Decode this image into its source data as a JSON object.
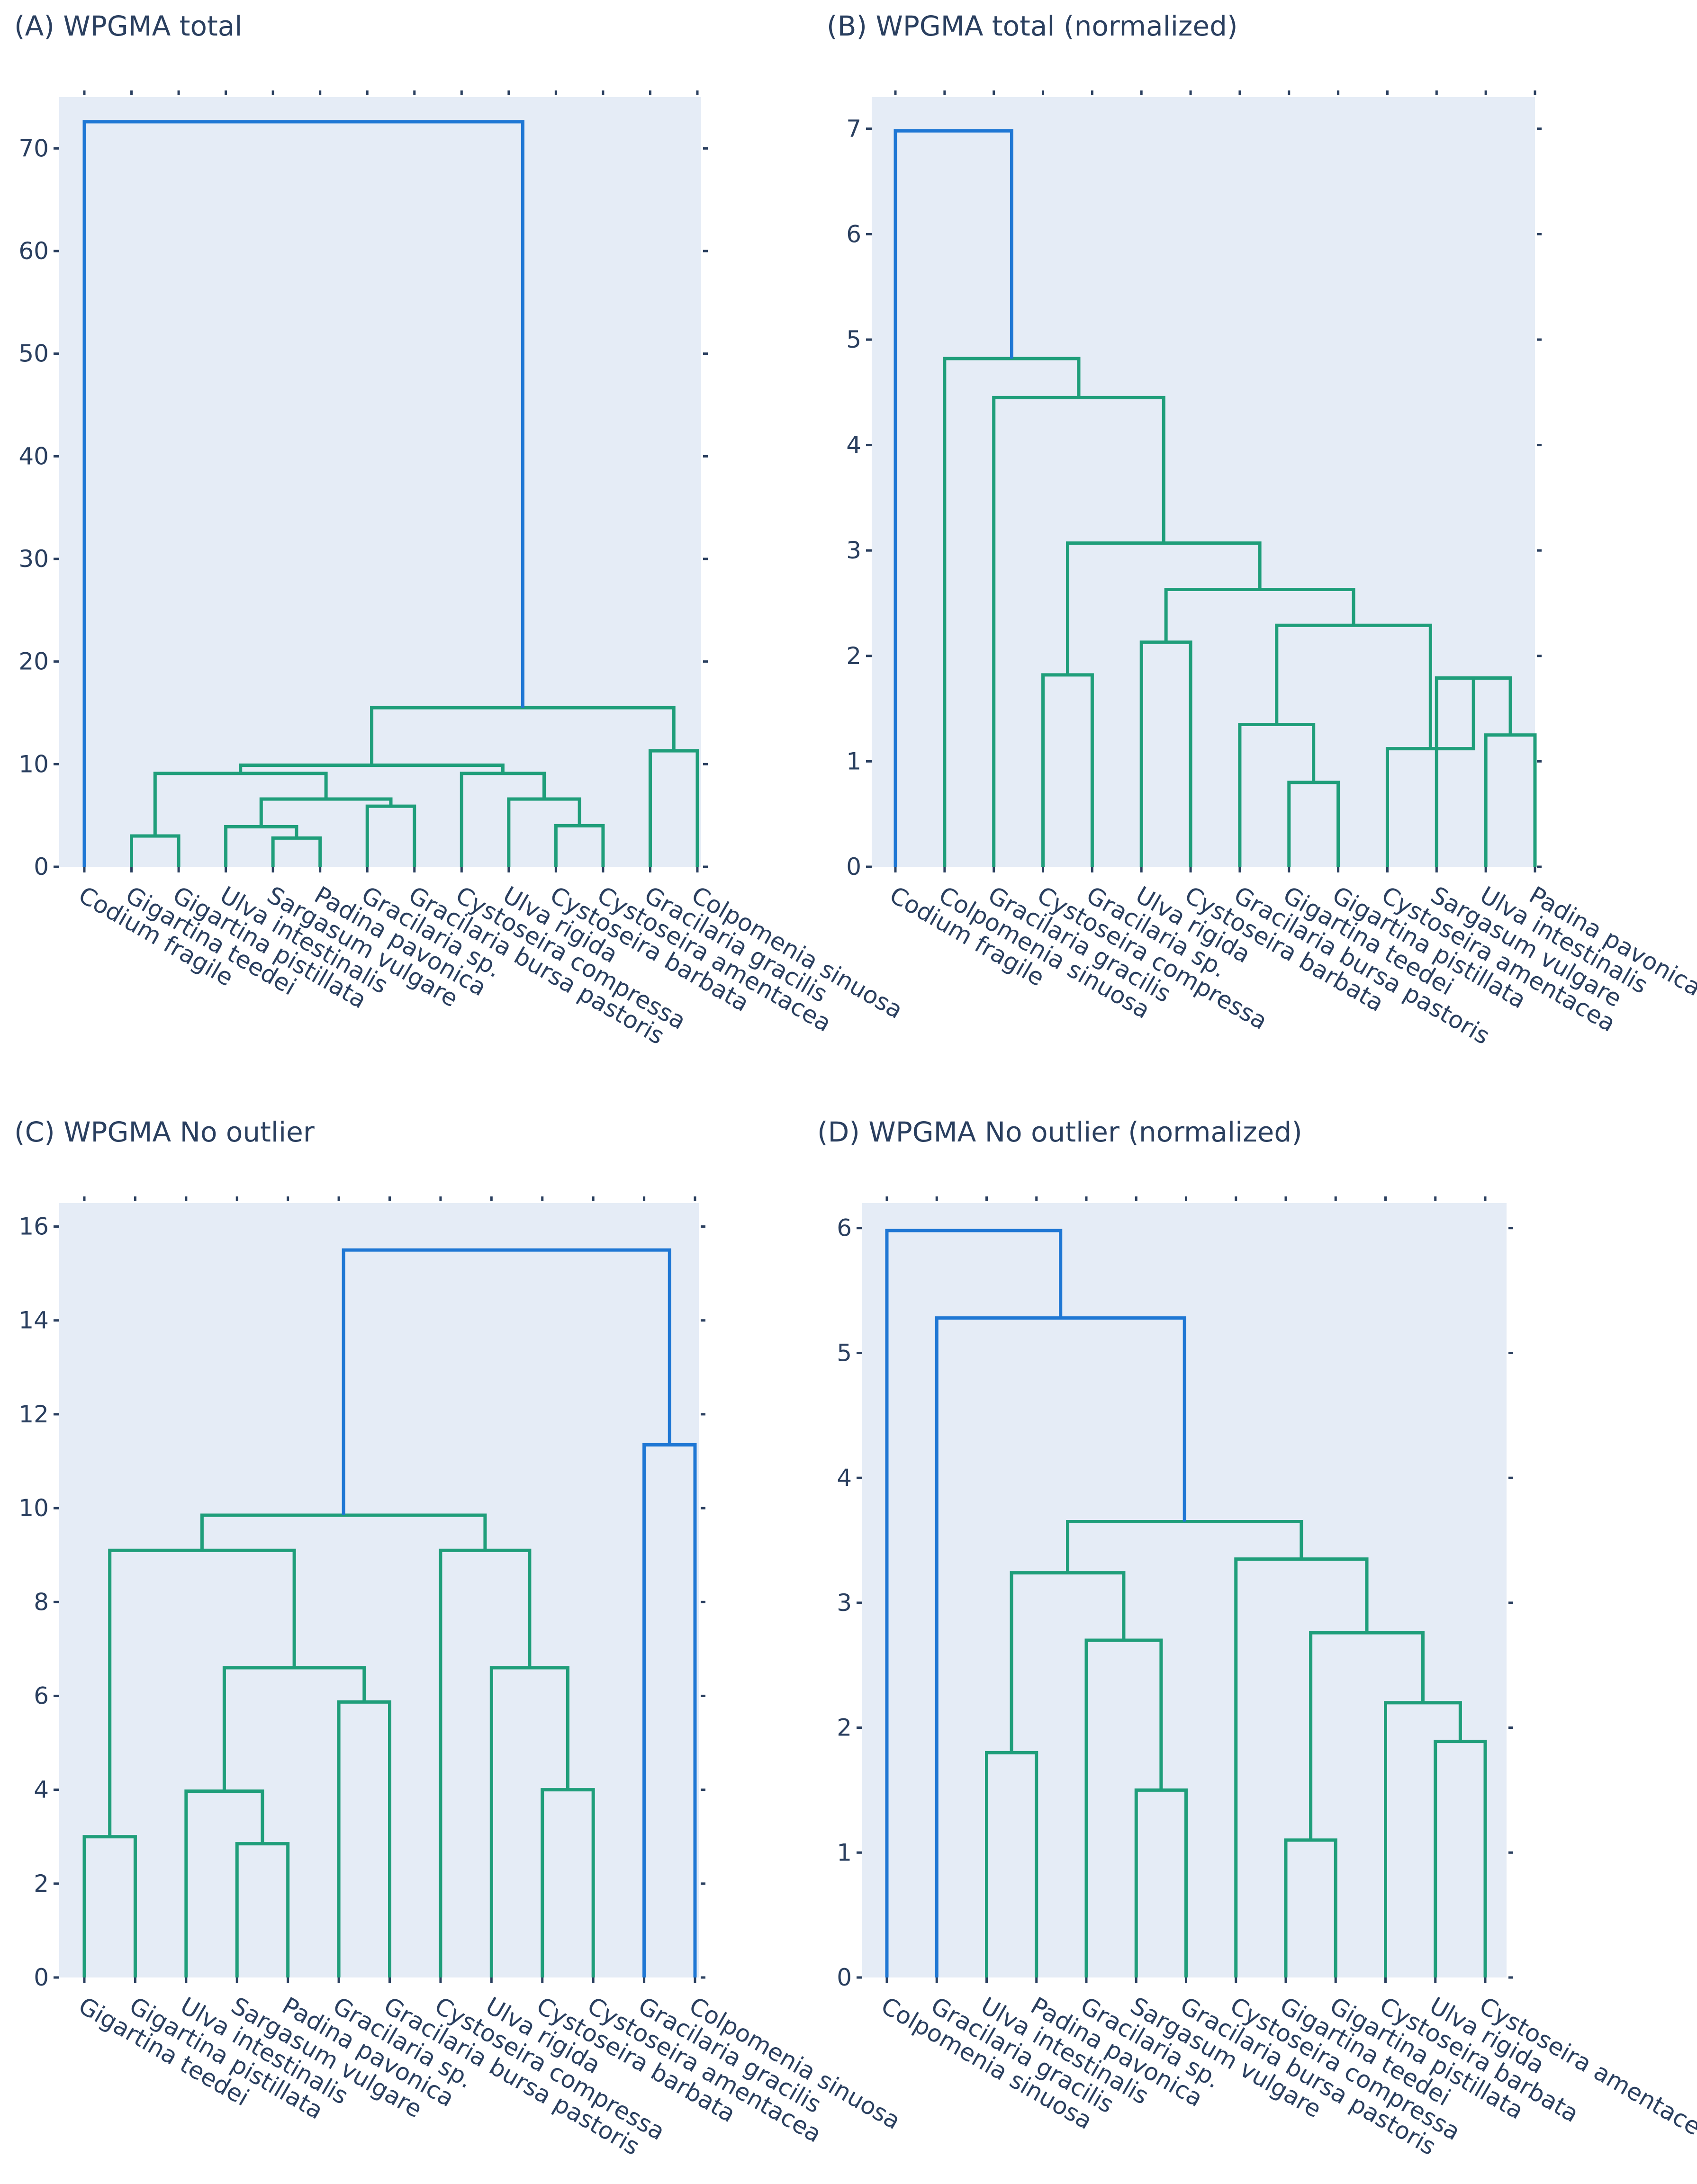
{
  "colors": {
    "background": "#e5ecf6",
    "above_threshold": "#1f77d4",
    "cluster": "#1f9e7a",
    "text": "#2a3f5f"
  },
  "chart_data": [
    {
      "type": "dendrogram",
      "title": "(A) WPGMA total",
      "ylim": [
        0,
        75
      ],
      "yticks": [
        0,
        10,
        20,
        30,
        40,
        50,
        60,
        70
      ],
      "leaves": [
        "Codium fragile",
        "Gigartina teedei",
        "Gigartina pistillata",
        "Ulva intestinalis",
        "Sargasum vulgare",
        "Padina pavonica",
        "Gracilaria sp.",
        "Gracilaria bursa pastoris",
        "Cystoseira compressa",
        "Ulva rigida",
        "Cystoseira barbata",
        "Cystoseira amentacea",
        "Gracilaria gracilis",
        "Colpomenia sinuosa"
      ],
      "merges": [
        {
          "a": 1,
          "b": 2,
          "h": 3.0
        },
        {
          "a": 4,
          "b": 5,
          "h": 2.8
        },
        {
          "a": 3,
          "b": 15,
          "h": 3.9
        },
        {
          "a": 6,
          "b": 7,
          "h": 5.9
        },
        {
          "a": 16,
          "b": 17,
          "h": 6.6
        },
        {
          "a": 14,
          "b": 18,
          "h": 9.1
        },
        {
          "a": 10,
          "b": 11,
          "h": 4.0
        },
        {
          "a": 9,
          "b": 20,
          "h": 6.6
        },
        {
          "a": 8,
          "b": 21,
          "h": 9.1
        },
        {
          "a": 19,
          "b": 22,
          "h": 9.9
        },
        {
          "a": 12,
          "b": 13,
          "h": 11.3
        },
        {
          "a": 23,
          "b": 24,
          "h": 15.5
        },
        {
          "a": 0,
          "b": 25,
          "h": 72.6,
          "color": "above"
        }
      ]
    },
    {
      "type": "dendrogram",
      "title": "(B) WPGMA total (normalized)",
      "ylim": [
        0,
        7.3
      ],
      "yticks": [
        0,
        1,
        2,
        3,
        4,
        5,
        6,
        7
      ],
      "leaves": [
        "Codium fragile",
        "Colpomenia sinuosa",
        "Gracilaria gracilis",
        "Cystoseira compressa",
        "Gracilaria sp.",
        "Ulva rigida",
        "Cystoseira barbata",
        "Gracilaria bursa pastoris",
        "Gigartina teedei",
        "Gigartina pistillata",
        "Cystoseira amentacea",
        "Sargasum vulgare",
        "Ulva intestinalis",
        "Padina pavonica"
      ],
      "merges": [
        {
          "a": 3,
          "b": 4,
          "h": 1.82
        },
        {
          "a": 5,
          "b": 6,
          "h": 2.13
        },
        {
          "a": 8,
          "b": 9,
          "h": 0.8
        },
        {
          "a": 7,
          "b": 16,
          "h": 1.35
        },
        {
          "a": 12,
          "b": 13,
          "h": 1.25
        },
        {
          "a": 11,
          "b": 18,
          "h": 1.79
        },
        {
          "a": 10,
          "b": 19,
          "h": 1.12
        },
        {
          "a": 17,
          "b": 20,
          "h": 2.29
        },
        {
          "a": 15,
          "b": 21,
          "h": 2.63
        },
        {
          "a": 14,
          "b": 22,
          "h": 3.07
        },
        {
          "a": 2,
          "b": 23,
          "h": 4.45
        },
        {
          "a": 1,
          "b": 24,
          "h": 4.82
        },
        {
          "a": 0,
          "b": 25,
          "h": 6.98,
          "color": "above"
        }
      ]
    },
    {
      "type": "dendrogram",
      "title": "(C) WPGMA No outlier",
      "ylim": [
        0,
        16.5
      ],
      "yticks": [
        0,
        2,
        4,
        6,
        8,
        10,
        12,
        14,
        16
      ],
      "leaves": [
        "Gigartina teedei",
        "Gigartina pistillata",
        "Ulva intestinalis",
        "Sargasum vulgare",
        "Padina pavonica",
        "Gracilaria sp.",
        "Gracilaria bursa pastoris",
        "Cystoseira compressa",
        "Ulva rigida",
        "Cystoseira barbata",
        "Cystoseira amentacea",
        "Gracilaria gracilis",
        "Colpomenia sinuosa"
      ],
      "merges": [
        {
          "a": 0,
          "b": 1,
          "h": 3.0
        },
        {
          "a": 3,
          "b": 4,
          "h": 2.85
        },
        {
          "a": 2,
          "b": 14,
          "h": 3.97
        },
        {
          "a": 5,
          "b": 6,
          "h": 5.87
        },
        {
          "a": 15,
          "b": 16,
          "h": 6.6
        },
        {
          "a": 13,
          "b": 17,
          "h": 9.1
        },
        {
          "a": 9,
          "b": 10,
          "h": 4.0
        },
        {
          "a": 8,
          "b": 19,
          "h": 6.6
        },
        {
          "a": 7,
          "b": 20,
          "h": 9.1
        },
        {
          "a": 18,
          "b": 21,
          "h": 9.85
        },
        {
          "a": 11,
          "b": 12,
          "h": 11.35,
          "color": "above"
        },
        {
          "a": 22,
          "b": 23,
          "h": 15.5,
          "color": "above"
        }
      ]
    },
    {
      "type": "dendrogram",
      "title": "(D) WPGMA No outlier (normalized)",
      "ylim": [
        0,
        6.2
      ],
      "yticks": [
        0,
        1,
        2,
        3,
        4,
        5,
        6
      ],
      "leaves": [
        "Colpomenia sinuosa",
        "Gracilaria gracilis",
        "Ulva intestinalis",
        "Padina pavonica",
        "Gracilaria sp.",
        "Sargasum vulgare",
        "Gracilaria bursa pastoris",
        "Cystoseira compressa",
        "Gigartina teedei",
        "Gigartina pistillata",
        "Cystoseira barbata",
        "Ulva rigida",
        "Cystoseira amentacea"
      ],
      "merges": [
        {
          "a": 2,
          "b": 3,
          "h": 1.8
        },
        {
          "a": 5,
          "b": 6,
          "h": 1.5
        },
        {
          "a": 4,
          "b": 14,
          "h": 2.7
        },
        {
          "a": 13,
          "b": 15,
          "h": 3.24
        },
        {
          "a": 8,
          "b": 9,
          "h": 1.1
        },
        {
          "a": 11,
          "b": 12,
          "h": 1.89
        },
        {
          "a": 10,
          "b": 18,
          "h": 2.2
        },
        {
          "a": 17,
          "b": 19,
          "h": 2.76
        },
        {
          "a": 7,
          "b": 20,
          "h": 3.35
        },
        {
          "a": 16,
          "b": 21,
          "h": 3.65
        },
        {
          "a": 1,
          "b": 22,
          "h": 5.28,
          "color": "above"
        },
        {
          "a": 0,
          "b": 23,
          "h": 5.98,
          "color": "above"
        }
      ]
    }
  ]
}
